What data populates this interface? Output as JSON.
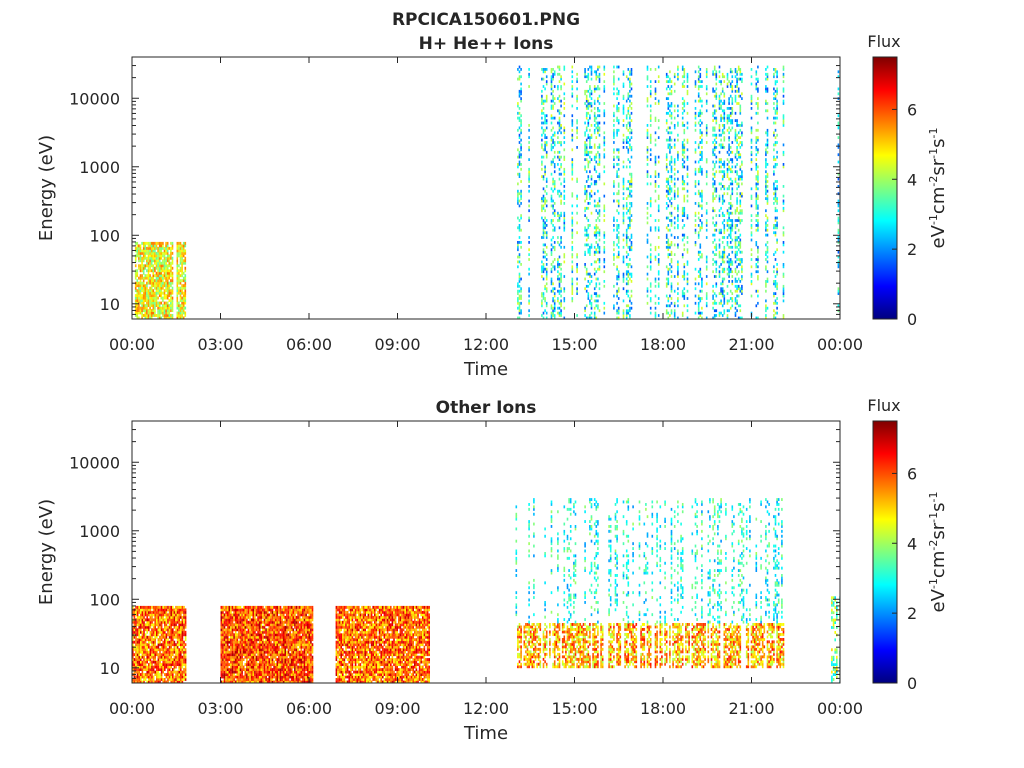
{
  "figure": {
    "title": "RPCICA150601.PNG"
  },
  "colormap": [
    "#00007f",
    "#0000ff",
    "#007fff",
    "#00ffff",
    "#7fff7f",
    "#ffff00",
    "#ff7f00",
    "#ff0000",
    "#7f0000"
  ],
  "chart_data": [
    {
      "type": "heatmap",
      "title": "H+ He++ Ions",
      "xlabel": "Time",
      "ylabel": "Energy (eV)",
      "x_ticks": [
        "00:00",
        "03:00",
        "06:00",
        "09:00",
        "12:00",
        "15:00",
        "18:00",
        "21:00",
        "00:00"
      ],
      "x_range_hours": [
        0,
        24
      ],
      "y_scale": "log",
      "y_ticks": [
        "10",
        "100",
        "1000",
        "10000"
      ],
      "y_range": [
        6,
        40000
      ],
      "grid": false,
      "colorbar": {
        "title": "Flux",
        "unit": "eV-1cm-2sr-1s-1",
        "ticks": [
          "0",
          "2",
          "4",
          "6"
        ],
        "range": [
          0,
          7.5
        ]
      },
      "bands": [
        {
          "x": [
            0.1,
            1.8
          ],
          "y": [
            6,
            80
          ],
          "flux": [
            3.5,
            5.8
          ],
          "density": 0.85
        },
        {
          "x": [
            13.0,
            22.1
          ],
          "y": [
            6,
            30000
          ],
          "flux": [
            1.5,
            4.5
          ],
          "density": 0.4
        },
        {
          "x": [
            23.7,
            24.0
          ],
          "y": [
            6,
            30000
          ],
          "flux": [
            1.5,
            3.8
          ],
          "density": 0.3
        }
      ]
    },
    {
      "type": "heatmap",
      "title": "Other Ions",
      "xlabel": "Time",
      "ylabel": "Energy (eV)",
      "x_ticks": [
        "00:00",
        "03:00",
        "06:00",
        "09:00",
        "12:00",
        "15:00",
        "18:00",
        "21:00",
        "00:00"
      ],
      "x_range_hours": [
        0,
        24
      ],
      "y_scale": "log",
      "y_ticks": [
        "10",
        "100",
        "1000",
        "10000"
      ],
      "y_range": [
        6,
        40000
      ],
      "grid": false,
      "colorbar": {
        "title": "Flux",
        "unit": "eV-1cm-2sr-1s-1",
        "ticks": [
          "0",
          "2",
          "4",
          "6"
        ],
        "range": [
          0,
          7.5
        ]
      },
      "bands": [
        {
          "x": [
            0.0,
            1.8
          ],
          "y": [
            6,
            80
          ],
          "flux": [
            4.5,
            7.0
          ],
          "density": 0.9
        },
        {
          "x": [
            3.0,
            6.1
          ],
          "y": [
            6,
            80
          ],
          "flux": [
            4.8,
            7.2
          ],
          "density": 0.95
        },
        {
          "x": [
            6.9,
            10.1
          ],
          "y": [
            6,
            80
          ],
          "flux": [
            4.6,
            7.0
          ],
          "density": 0.9
        },
        {
          "x": [
            13.0,
            22.1
          ],
          "y": [
            10,
            45
          ],
          "flux": [
            4.0,
            6.5
          ],
          "density": 0.7
        },
        {
          "x": [
            13.0,
            22.1
          ],
          "y": [
            45,
            3000
          ],
          "flux": [
            2.0,
            4.0
          ],
          "density": 0.3
        },
        {
          "x": [
            23.7,
            24.0
          ],
          "y": [
            6,
            120
          ],
          "flux": [
            2.5,
            5.0
          ],
          "density": 0.5
        }
      ]
    }
  ]
}
